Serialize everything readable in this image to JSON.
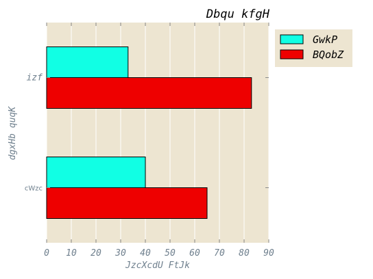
{
  "chart_data": {
    "type": "bar",
    "orientation": "horizontal",
    "title": "Dbqu kfgH",
    "xlabel": "JzcXcdU FtJk",
    "ylabel": "dgxHb quqK",
    "categories": [
      "cWzc",
      "izf"
    ],
    "series": [
      {
        "name": "GwkP",
        "color": "#11ffe4",
        "values": [
          40,
          33
        ]
      },
      {
        "name": "BQobZ",
        "color": "#ee0000",
        "values": [
          65,
          83
        ]
      }
    ],
    "xlim": [
      0,
      90
    ],
    "xticks": [
      0,
      10,
      20,
      30,
      40,
      50,
      60,
      70,
      80,
      90
    ],
    "grid": true,
    "legend_position": "top-right, outside plot",
    "background_color": "#ede5d1",
    "grid_color": "#ffffff"
  }
}
